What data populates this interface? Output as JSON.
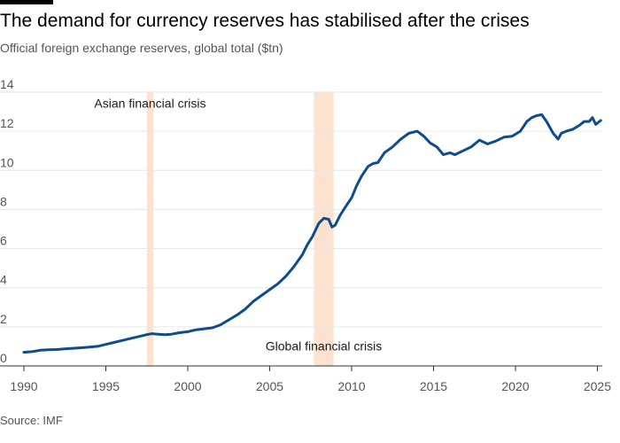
{
  "page": {
    "title": "The demand for currency reserves has stabilised after the crises",
    "subtitle": "Official foreign exchange reserves, global total ($tn)",
    "source": "Source: IMF"
  },
  "colors": {
    "line": "#0f4c8c",
    "shade": "#fde3cf",
    "grid": "#e6e6e6",
    "axis": "#333333"
  },
  "chart_data": {
    "type": "line",
    "title": "The demand for currency reserves has stabilised after the crises",
    "subtitle": "Official foreign exchange reserves, global total ($tn)",
    "xlabel": "",
    "ylabel": "",
    "xlim": [
      1990,
      2025.3
    ],
    "ylim": [
      0,
      14
    ],
    "grid": true,
    "xticks": [
      1990,
      1995,
      2000,
      2005,
      2010,
      2015,
      2020,
      2025
    ],
    "yticks": [
      0,
      2,
      4,
      6,
      8,
      10,
      12,
      14
    ],
    "crisis_bands": [
      {
        "label": "Asian financial crisis",
        "start": 1997.5,
        "end": 1997.9
      },
      {
        "label": "Global financial crisis",
        "start": 2007.7,
        "end": 2008.9
      }
    ],
    "series": [
      {
        "x": [
          1990,
          1990.5,
          1991,
          1991.5,
          1992,
          1992.5,
          1993,
          1993.5,
          1994,
          1994.5,
          1995,
          1995.5,
          1996,
          1996.5,
          1997,
          1997.5,
          1997.8,
          1998.2,
          1998.6,
          1999,
          1999.5,
          2000,
          2000.5,
          2001,
          2001.5,
          2002,
          2002.5,
          2003,
          2003.5,
          2004,
          2004.5,
          2005,
          2005.5,
          2006,
          2006.5,
          2007,
          2007.3,
          2007.6,
          2008,
          2008.3,
          2008.6,
          2008.8,
          2009,
          2009.3,
          2009.6,
          2010,
          2010.3,
          2010.6,
          2011,
          2011.3,
          2011.6,
          2012,
          2012.5,
          2013,
          2013.5,
          2014,
          2014.4,
          2014.8,
          2015.2,
          2015.6,
          2016,
          2016.3,
          2016.8,
          2017.3,
          2017.8,
          2018.3,
          2018.8,
          2019.3,
          2019.8,
          2020.3,
          2020.7,
          2021,
          2021.3,
          2021.6,
          2021.9,
          2022.3,
          2022.6,
          2022.8,
          2023.1,
          2023.5,
          2023.9,
          2024.2,
          2024.5,
          2024.7,
          2024.9,
          2025.2
        ],
        "values": [
          0.7,
          0.73,
          0.8,
          0.83,
          0.84,
          0.87,
          0.9,
          0.93,
          0.96,
          1.0,
          1.1,
          1.2,
          1.3,
          1.4,
          1.5,
          1.6,
          1.65,
          1.62,
          1.6,
          1.62,
          1.7,
          1.75,
          1.85,
          1.9,
          1.95,
          2.1,
          2.35,
          2.6,
          2.9,
          3.3,
          3.6,
          3.9,
          4.2,
          4.6,
          5.1,
          5.7,
          6.2,
          6.6,
          7.3,
          7.55,
          7.5,
          7.1,
          7.2,
          7.7,
          8.1,
          8.6,
          9.2,
          9.7,
          10.2,
          10.35,
          10.4,
          10.9,
          11.2,
          11.6,
          11.9,
          12.0,
          11.75,
          11.4,
          11.2,
          10.8,
          10.9,
          10.8,
          11.0,
          11.2,
          11.55,
          11.35,
          11.5,
          11.7,
          11.75,
          12.0,
          12.5,
          12.7,
          12.8,
          12.85,
          12.5,
          11.9,
          11.6,
          11.9,
          12.0,
          12.1,
          12.3,
          12.5,
          12.5,
          12.7,
          12.35,
          12.55
        ]
      }
    ]
  }
}
